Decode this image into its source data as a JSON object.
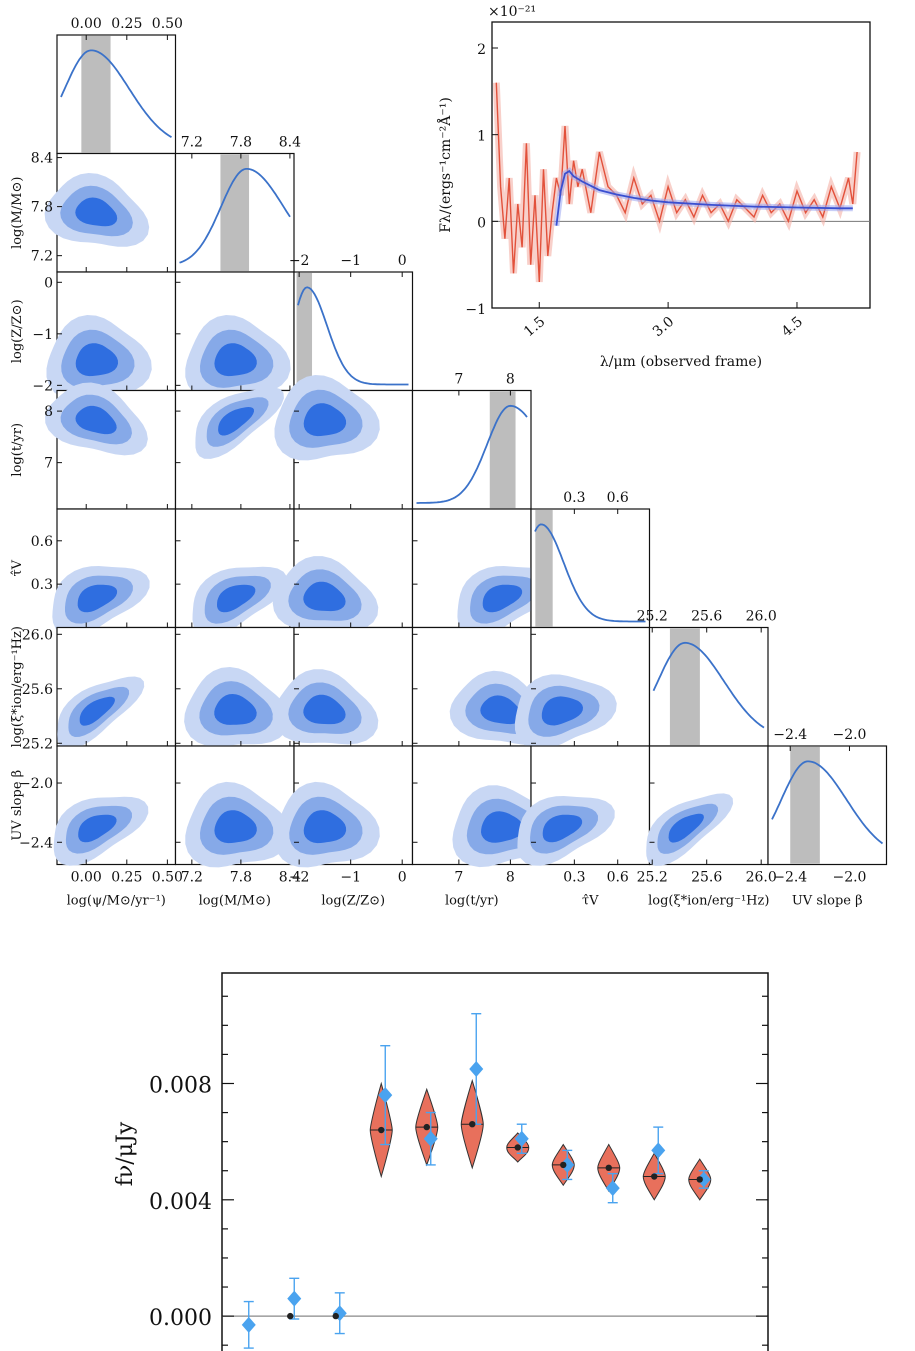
{
  "chart_data": [
    {
      "type": "corner",
      "params": [
        {
          "label": "log(ψ/M⊙/yr⁻¹)",
          "ticks": [
            "0.00",
            "0.25",
            "0.50"
          ],
          "tick_values": [
            0.0,
            0.25,
            0.5
          ],
          "range": [
            -0.18,
            0.55
          ],
          "median_band": [
            -0.03,
            0.15
          ],
          "peak": 0.03
        },
        {
          "label": "log(M/M⊙)",
          "ticks": [
            "7.2",
            "7.8",
            "8.4"
          ],
          "tick_values": [
            7.2,
            7.8,
            8.4
          ],
          "range": [
            7.0,
            8.45
          ],
          "median_band": [
            7.55,
            7.9
          ],
          "peak": 7.87
        },
        {
          "label": "log(Z/Z⊙)",
          "ticks": [
            "−2",
            "−1",
            "0"
          ],
          "tick_values": [
            -2,
            -1,
            0
          ],
          "range": [
            -2.1,
            0.2
          ],
          "median_band": [
            -2.05,
            -1.75
          ],
          "peak": -1.85
        },
        {
          "label": "log(t/yr)",
          "ticks": [
            "7",
            "8"
          ],
          "tick_values": [
            7,
            8
          ],
          "range": [
            6.1,
            8.4
          ],
          "median_band": [
            7.6,
            8.1
          ],
          "peak": 8.0
        },
        {
          "label": "τ̂V",
          "ticks": [
            "0.3",
            "0.6"
          ],
          "tick_values": [
            0.3,
            0.6
          ],
          "range": [
            0.0,
            0.82
          ],
          "median_band": [
            0.03,
            0.15
          ],
          "peak": 0.07
        },
        {
          "label": "log(ξ*ion/erg⁻¹Hz)",
          "ticks": [
            "25.2",
            "25.6",
            "26.0"
          ],
          "tick_values": [
            25.2,
            25.6,
            26.0
          ],
          "range": [
            25.18,
            26.05
          ],
          "median_band": [
            25.33,
            25.55
          ],
          "peak": 25.44
        },
        {
          "label": "UV slope β",
          "ticks": [
            "−2.4",
            "−2.0"
          ],
          "tick_values": [
            -2.4,
            -2.0
          ],
          "range": [
            -2.55,
            -1.75
          ],
          "median_band": [
            -2.4,
            -2.2
          ],
          "peak": -2.28
        }
      ],
      "y_axis_labels": [
        "log(M/M⊙)",
        "log(Z/Z⊙)",
        "log(t/yr)",
        "τ̂V",
        "log(ξ*ion/erg⁻¹Hz)",
        "UV slope β"
      ],
      "colors": {
        "contour_dark": "#2f6ee0",
        "contour_mid": "#86a9e8",
        "contour_light": "#c8d7f4",
        "marginal_line": "#3b72c9",
        "band": "#bdbdbd"
      }
    },
    {
      "type": "line",
      "title": "",
      "xlabel": "λ/μm (observed frame)",
      "ylabel": "Fλ/(ergs⁻¹cm⁻²Å⁻¹)",
      "y_scale_label": "×10⁻²¹",
      "x_ticks": [
        "1.5",
        "3.0",
        "4.5"
      ],
      "x_tick_values": [
        1.5,
        3.0,
        4.5
      ],
      "y_ticks": [
        "−1",
        "0",
        "1",
        "2"
      ],
      "y_tick_values": [
        -1,
        0,
        1,
        2
      ],
      "xlim": [
        0.95,
        5.35
      ],
      "ylim": [
        -1.0,
        2.3
      ],
      "series": [
        {
          "role": "observed spectrum",
          "color": "#e2513b",
          "x": [
            1.0,
            1.05,
            1.1,
            1.15,
            1.2,
            1.25,
            1.3,
            1.35,
            1.4,
            1.45,
            1.5,
            1.55,
            1.6,
            1.65,
            1.7,
            1.75,
            1.8,
            1.85,
            1.9,
            1.95,
            2.0,
            2.1,
            2.2,
            2.3,
            2.4,
            2.5,
            2.6,
            2.7,
            2.8,
            2.9,
            3.0,
            3.1,
            3.2,
            3.3,
            3.4,
            3.5,
            3.6,
            3.7,
            3.8,
            3.9,
            4.0,
            4.1,
            4.2,
            4.3,
            4.4,
            4.5,
            4.6,
            4.7,
            4.8,
            4.9,
            5.0,
            5.1,
            5.15,
            5.2
          ],
          "y": [
            1.6,
            0.4,
            -0.2,
            0.5,
            -0.6,
            0.2,
            -0.3,
            0.9,
            -0.5,
            0.3,
            -0.7,
            0.6,
            -0.4,
            0.1,
            0.5,
            0.3,
            1.1,
            0.2,
            0.7,
            0.4,
            0.6,
            0.1,
            0.8,
            0.4,
            0.3,
            0.1,
            0.5,
            0.2,
            0.3,
            0.0,
            0.4,
            0.1,
            0.25,
            0.05,
            0.3,
            0.1,
            0.2,
            0.0,
            0.25,
            0.15,
            0.05,
            0.3,
            0.1,
            0.2,
            0.0,
            0.35,
            0.1,
            0.25,
            0.05,
            0.4,
            0.15,
            0.5,
            0.2,
            0.8
          ]
        },
        {
          "role": "model fit",
          "color": "#3a4fd0",
          "x": [
            1.7,
            1.75,
            1.8,
            1.85,
            1.9,
            2.0,
            2.1,
            2.2,
            2.4,
            2.6,
            2.8,
            3.0,
            3.5,
            4.0,
            4.5,
            5.0,
            5.15
          ],
          "y": [
            -0.05,
            0.35,
            0.55,
            0.58,
            0.52,
            0.46,
            0.41,
            0.36,
            0.31,
            0.27,
            0.24,
            0.22,
            0.19,
            0.17,
            0.16,
            0.15,
            0.15
          ]
        }
      ]
    },
    {
      "type": "scatter",
      "title": "",
      "xlabel": "",
      "ylabel": "fν/μJy",
      "y_ticks": [
        "0.000",
        "0.004",
        "0.008"
      ],
      "y_tick_values": [
        0.0,
        0.004,
        0.008
      ],
      "ylim": [
        -0.0012,
        0.0118
      ],
      "series": [
        {
          "role": "observed photometry",
          "color": "#4aa3ef",
          "x": [
            1,
            2,
            3,
            4,
            5,
            6,
            7,
            8,
            9,
            10,
            11,
            12
          ],
          "y": [
            -0.0003,
            0.0006,
            0.0001,
            0.0076,
            0.0061,
            0.0085,
            0.0061,
            0.0052,
            0.0044,
            0.0057,
            0.0047,
            null
          ],
          "err": [
            0.0008,
            0.0007,
            0.0007,
            0.0017,
            0.0009,
            0.0019,
            0.0005,
            0.0005,
            0.0005,
            0.0008,
            0.0003,
            null
          ]
        },
        {
          "role": "model photometry",
          "color": "#222222",
          "x": [
            2,
            3,
            4,
            5,
            6,
            7,
            8,
            9,
            10,
            11
          ],
          "y": [
            0.0,
            0.0,
            0.0064,
            0.0065,
            0.0066,
            0.0058,
            0.0052,
            0.0051,
            0.0048,
            0.0047
          ]
        }
      ],
      "violins": [
        {
          "x": 4,
          "center": 0.0064,
          "half_range": 0.0016
        },
        {
          "x": 5,
          "center": 0.0065,
          "half_range": 0.0013
        },
        {
          "x": 6,
          "center": 0.0066,
          "half_range": 0.0015
        },
        {
          "x": 7,
          "center": 0.0058,
          "half_range": 0.0005
        },
        {
          "x": 8,
          "center": 0.0052,
          "half_range": 0.0007
        },
        {
          "x": 9,
          "center": 0.0051,
          "half_range": 0.0008
        },
        {
          "x": 10,
          "center": 0.0048,
          "half_range": 0.0008
        },
        {
          "x": 11,
          "center": 0.0047,
          "half_range": 0.0007
        }
      ],
      "colors": {
        "violin": "#e8705c",
        "zero_line": "#888888"
      }
    }
  ]
}
